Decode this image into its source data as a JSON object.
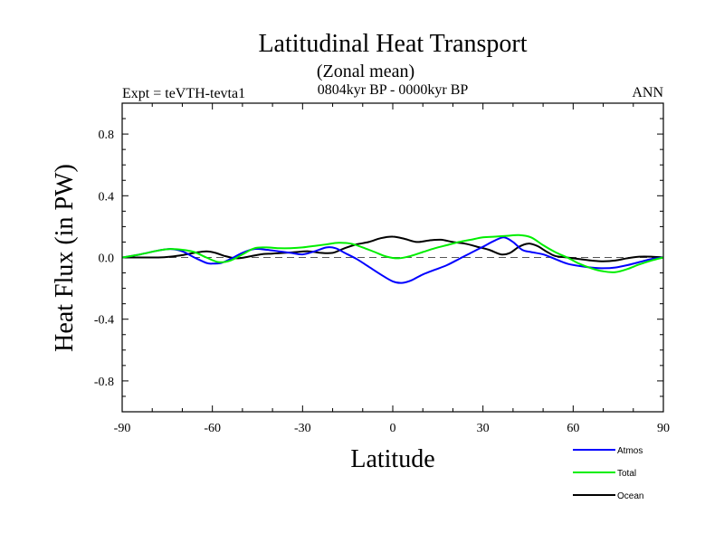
{
  "chart_data": {
    "type": "line",
    "title": "Latitudinal Heat Transport",
    "subtitle": "(Zonal mean)",
    "period": "0804kyr BP - 0000kyr BP",
    "left_label": "Expt = teVTH-tevta1",
    "right_label": "ANN",
    "xlabel": "Latitude",
    "ylabel": "Heat Flux (in PW)",
    "xlim": [
      -90,
      90
    ],
    "ylim": [
      -1.0,
      1.0
    ],
    "x_ticks": [
      -90,
      -60,
      -30,
      0,
      30,
      60,
      90
    ],
    "x_tick_labels": [
      "-90",
      "-60",
      "-30",
      "0",
      "30",
      "60",
      "90"
    ],
    "y_ticks": [
      -0.8,
      -0.4,
      0.0,
      0.4,
      0.8
    ],
    "y_tick_labels": [
      "-0.8",
      "-0.4",
      "0.0",
      "0.4",
      "0.8"
    ],
    "zero_line": "dashed",
    "series": [
      {
        "name": "Atmos",
        "color": "#0000ff",
        "x": [
          -90,
          -84,
          -78,
          -74,
          -70,
          -66,
          -62,
          -60,
          -57,
          -54,
          -50,
          -46,
          -42,
          -38,
          -34,
          -30,
          -26,
          -22,
          -19,
          -16,
          -12,
          -8,
          -4,
          0,
          3,
          6,
          10,
          14,
          18,
          22,
          26,
          30,
          34,
          37,
          40,
          43,
          46,
          50,
          54,
          58,
          62,
          66,
          70,
          74,
          78,
          82,
          86,
          90
        ],
        "values": [
          0,
          0.02,
          0.045,
          0.055,
          0.04,
          0.0,
          -0.035,
          -0.04,
          -0.035,
          -0.01,
          0.03,
          0.055,
          0.05,
          0.04,
          0.03,
          0.02,
          0.04,
          0.065,
          0.06,
          0.03,
          -0.01,
          -0.06,
          -0.11,
          -0.155,
          -0.165,
          -0.15,
          -0.11,
          -0.08,
          -0.05,
          -0.01,
          0.03,
          0.07,
          0.11,
          0.13,
          0.1,
          0.05,
          0.035,
          0.02,
          -0.01,
          -0.04,
          -0.055,
          -0.065,
          -0.07,
          -0.065,
          -0.05,
          -0.03,
          -0.01,
          0
        ]
      },
      {
        "name": "Total",
        "color": "#00ee00",
        "x": [
          -90,
          -84,
          -78,
          -74,
          -70,
          -66,
          -62,
          -58,
          -54,
          -50,
          -46,
          -42,
          -38,
          -34,
          -30,
          -26,
          -22,
          -18,
          -14,
          -10,
          -6,
          -2,
          2,
          6,
          10,
          14,
          18,
          22,
          26,
          30,
          34,
          38,
          42,
          46,
          50,
          54,
          58,
          62,
          66,
          70,
          74,
          78,
          82,
          86,
          90
        ],
        "values": [
          0,
          0.02,
          0.045,
          0.055,
          0.05,
          0.035,
          0.0,
          -0.03,
          -0.02,
          0.02,
          0.06,
          0.065,
          0.06,
          0.06,
          0.065,
          0.075,
          0.085,
          0.095,
          0.09,
          0.065,
          0.035,
          0.005,
          -0.005,
          0.01,
          0.035,
          0.06,
          0.08,
          0.1,
          0.115,
          0.13,
          0.135,
          0.14,
          0.145,
          0.13,
          0.08,
          0.035,
          0.0,
          -0.04,
          -0.07,
          -0.09,
          -0.095,
          -0.075,
          -0.045,
          -0.02,
          0
        ]
      },
      {
        "name": "Ocean",
        "color": "#000000",
        "x": [
          -90,
          -84,
          -78,
          -74,
          -70,
          -66,
          -62,
          -59,
          -56,
          -52,
          -48,
          -44,
          -40,
          -36,
          -32,
          -28,
          -24,
          -20,
          -16,
          -12,
          -8,
          -4,
          0,
          4,
          8,
          12,
          16,
          20,
          24,
          28,
          32,
          36,
          39,
          42,
          45,
          48,
          51,
          54,
          58,
          62,
          66,
          70,
          74,
          78,
          82,
          86,
          90
        ],
        "values": [
          0,
          0.0,
          0.0,
          0.005,
          0.015,
          0.03,
          0.04,
          0.03,
          0.01,
          -0.005,
          0.005,
          0.02,
          0.025,
          0.03,
          0.035,
          0.04,
          0.03,
          0.03,
          0.06,
          0.085,
          0.1,
          0.125,
          0.135,
          0.12,
          0.1,
          0.11,
          0.115,
          0.1,
          0.09,
          0.07,
          0.05,
          0.02,
          0.03,
          0.07,
          0.09,
          0.075,
          0.04,
          0.01,
          0.0,
          -0.01,
          -0.02,
          -0.025,
          -0.02,
          -0.005,
          0.005,
          0.005,
          0
        ]
      }
    ],
    "legend_position": "bottom-right"
  }
}
